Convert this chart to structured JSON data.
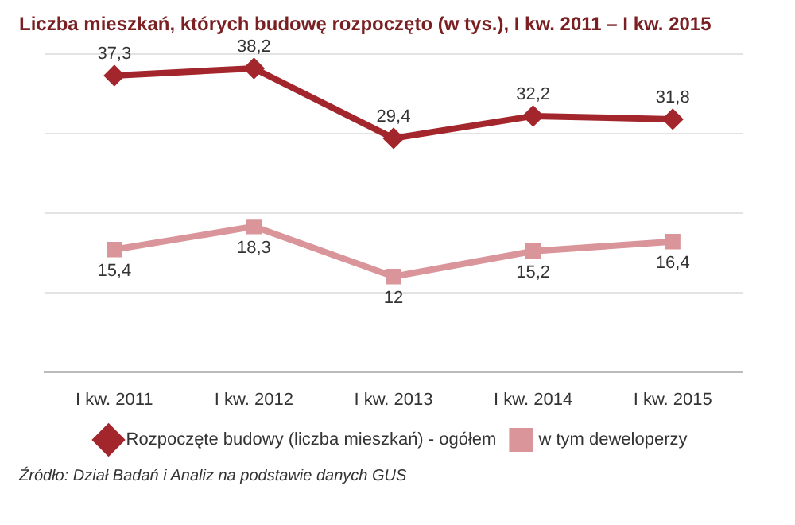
{
  "chart_data": {
    "type": "line",
    "title": "Liczba mieszkań, których budowę rozpoczęto (w tys.), I kw. 2011 – I kw. 2015",
    "categories": [
      "I kw. 2011",
      "I kw. 2012",
      "I kw. 2013",
      "I kw. 2014",
      "I kw. 2015"
    ],
    "series": [
      {
        "name": "Rozpoczęte budowy (liczba mieszkań) - ogółem",
        "color": "#a3262c",
        "marker": "diamond",
        "values": [
          37.3,
          38.2,
          29.4,
          32.2,
          31.8
        ],
        "value_labels": [
          "37,3",
          "38,2",
          "29,4",
          "32,2",
          "31,8"
        ]
      },
      {
        "name": "w tym deweloperzy",
        "color": "#d9959a",
        "marker": "square",
        "values": [
          15.4,
          18.3,
          12,
          15.2,
          16.4
        ],
        "value_labels": [
          "15,4",
          "18,3",
          "12",
          "15,2",
          "16,4"
        ]
      }
    ],
    "ylim": [
      0,
      40
    ],
    "yticks": [
      {
        "value": 0,
        "label": null
      },
      {
        "value": 10,
        "label": null
      },
      {
        "value": 20,
        "label": null
      },
      {
        "value": 30,
        "label": null
      },
      {
        "value": 40,
        "label": null
      }
    ],
    "tick_labels": "x",
    "grid": "y",
    "legend": "bottom",
    "annotations": [
      "Źródło: Dział Badań i Analiz na podstawie danych GUS"
    ]
  }
}
